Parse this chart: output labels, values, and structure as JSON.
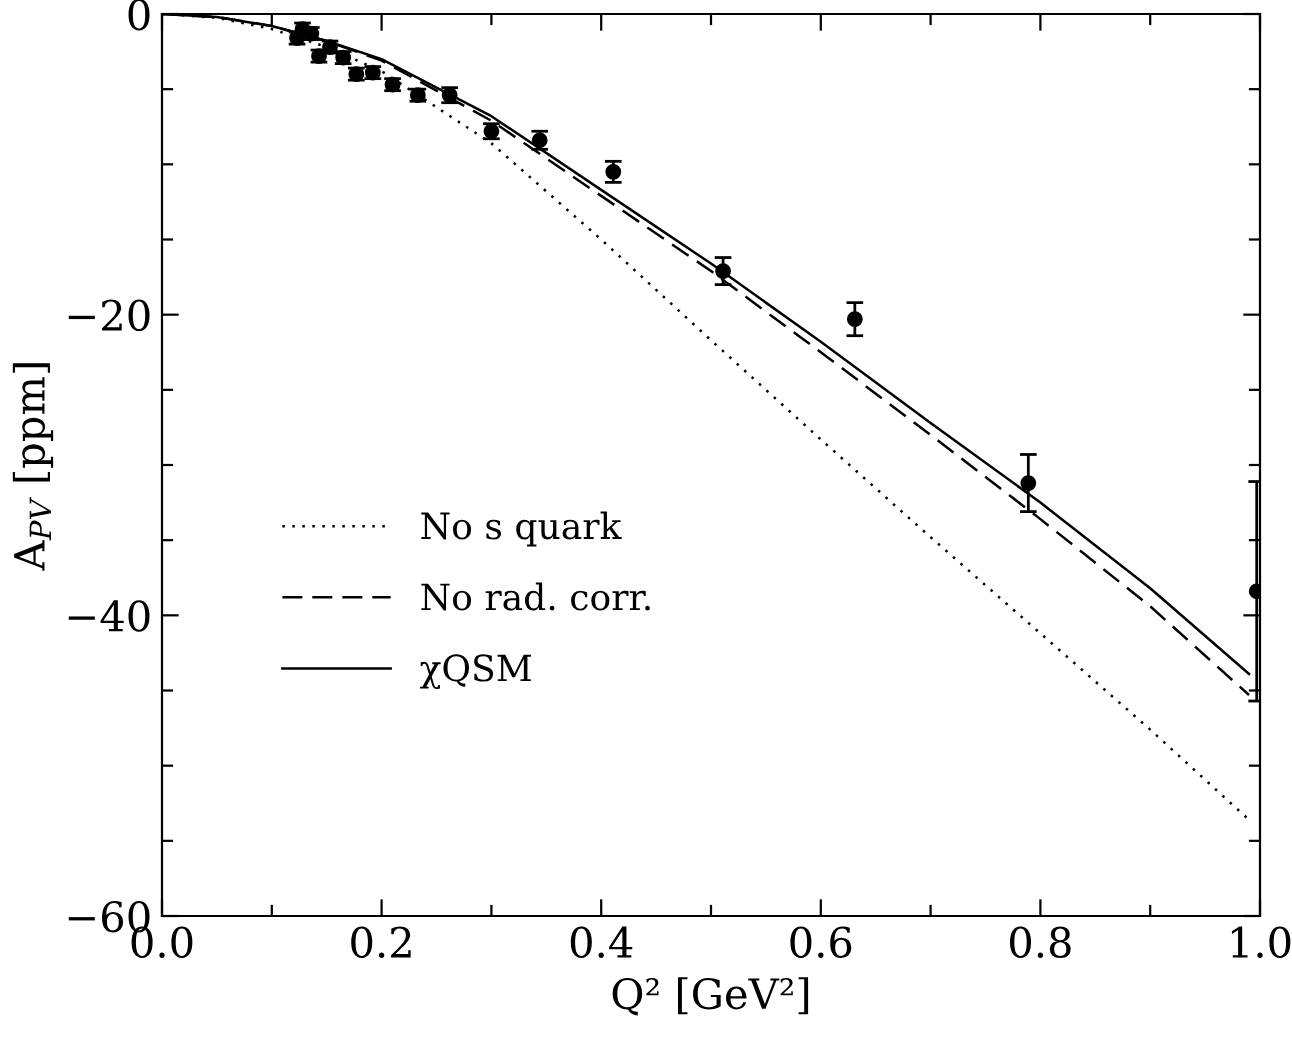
{
  "chart_data": {
    "type": "line",
    "xlabel": "Q² [GeV²]",
    "ylabel": "A$_{PV}$ [ppm]",
    "xlim": [
      0.0,
      1.0
    ],
    "ylim": [
      -60,
      0
    ],
    "xticks": [
      {
        "value": 0.0,
        "label": "0.0"
      },
      {
        "value": 0.1,
        "label": null
      },
      {
        "value": 0.2,
        "label": "0.2"
      },
      {
        "value": 0.3,
        "label": null
      },
      {
        "value": 0.4,
        "label": "0.4"
      },
      {
        "value": 0.5,
        "label": null
      },
      {
        "value": 0.6,
        "label": "0.6"
      },
      {
        "value": 0.7,
        "label": null
      },
      {
        "value": 0.8,
        "label": "0.8"
      },
      {
        "value": 0.9,
        "label": null
      },
      {
        "value": 1.0,
        "label": "1.0"
      }
    ],
    "yticks": [
      {
        "value": -60,
        "label": "−60"
      },
      {
        "value": -55,
        "label": null
      },
      {
        "value": -50,
        "label": null
      },
      {
        "value": -45,
        "label": null
      },
      {
        "value": -40,
        "label": "−40"
      },
      {
        "value": -35,
        "label": null
      },
      {
        "value": -30,
        "label": null
      },
      {
        "value": -25,
        "label": null
      },
      {
        "value": -20,
        "label": "−20"
      },
      {
        "value": -15,
        "label": null
      },
      {
        "value": -10,
        "label": null
      },
      {
        "value": -5,
        "label": null
      },
      0
    ],
    "grid": false,
    "legend": "center left",
    "series": [
      {
        "name": "No s quark",
        "line_style": "dotted",
        "color": "#000000",
        "x": [
          0,
          0.05,
          0.1,
          0.15,
          0.2,
          0.3,
          0.4,
          0.5,
          0.6,
          0.7,
          0.8,
          0.9,
          0.99
        ],
        "values": [
          0,
          -0.25,
          -1.0,
          -2.2,
          -3.8,
          -8.6,
          -15.0,
          -21.7,
          -28.3,
          -34.8,
          -41.2,
          -47.6,
          -53.6
        ]
      },
      {
        "name": "No rad. corr.",
        "line_style": "dashed",
        "color": "#000000",
        "x": [
          0,
          0.05,
          0.1,
          0.15,
          0.2,
          0.3,
          0.4,
          0.5,
          0.6,
          0.7,
          0.8,
          0.9,
          0.99
        ],
        "values": [
          0,
          -0.2,
          -0.8,
          -1.8,
          -3.1,
          -7.1,
          -12.1,
          -17.1,
          -22.5,
          -28.0,
          -33.6,
          -39.4,
          -45.3
        ]
      },
      {
        "name": "χQSM",
        "line_style": "solid",
        "color": "#000000",
        "x": [
          0,
          0.05,
          0.1,
          0.15,
          0.2,
          0.3,
          0.4,
          0.5,
          0.6,
          0.7,
          0.8,
          0.9,
          0.99
        ],
        "values": [
          0,
          -0.2,
          -0.8,
          -1.8,
          -3.0,
          -6.8,
          -11.7,
          -16.6,
          -21.8,
          -27.2,
          -32.5,
          -38.2,
          -43.9
        ]
      },
      {
        "type": "scatter",
        "marker": "circle",
        "color": "#000000",
        "x": [
          0.123,
          0.128,
          0.136,
          0.143,
          0.153,
          0.165,
          0.177,
          0.192,
          0.21,
          0.233,
          0.262,
          0.3,
          0.344,
          0.411,
          0.511,
          0.631,
          0.789,
          0.997
        ],
        "values": [
          -1.6,
          -1.0,
          -1.3,
          -2.8,
          -2.2,
          -2.9,
          -4.0,
          -3.9,
          -4.7,
          -5.4,
          -5.4,
          -7.8,
          -8.4,
          -10.5,
          -17.1,
          -20.3,
          -31.2,
          -38.4
        ],
        "errors": [
          0.4,
          0.4,
          0.4,
          0.4,
          0.4,
          0.4,
          0.4,
          0.4,
          0.4,
          0.4,
          0.5,
          0.5,
          0.6,
          0.7,
          0.9,
          1.1,
          1.9,
          7.3
        ]
      }
    ]
  }
}
